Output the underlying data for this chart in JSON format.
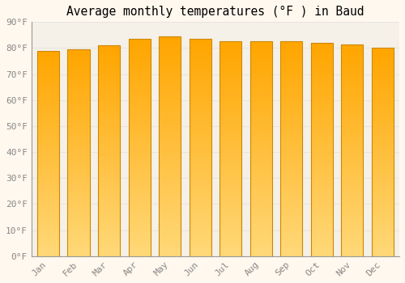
{
  "title": "Average monthly temperatures (°F ) in Baud",
  "months": [
    "Jan",
    "Feb",
    "Mar",
    "Apr",
    "May",
    "Jun",
    "Jul",
    "Aug",
    "Sep",
    "Oct",
    "Nov",
    "Dec"
  ],
  "values": [
    79.0,
    79.5,
    81.0,
    83.5,
    84.5,
    83.5,
    82.5,
    82.5,
    82.5,
    82.0,
    81.5,
    80.0
  ],
  "ylim": [
    0,
    90
  ],
  "yticks": [
    0,
    10,
    20,
    30,
    40,
    50,
    60,
    70,
    80,
    90
  ],
  "ytick_labels": [
    "0°F",
    "10°F",
    "20°F",
    "30°F",
    "40°F",
    "50°F",
    "60°F",
    "70°F",
    "80°F",
    "90°F"
  ],
  "bar_color_top": "#FFA500",
  "bar_color_bottom": "#FFD878",
  "bar_edge_color": "#CC8800",
  "background_color": "#FFF8EE",
  "plot_bg_color": "#F5F0E8",
  "grid_color": "#E8E4E0",
  "title_fontsize": 10.5,
  "tick_fontsize": 8,
  "title_font": "monospace",
  "tick_font": "monospace",
  "bar_width": 0.72,
  "n_grad": 80
}
